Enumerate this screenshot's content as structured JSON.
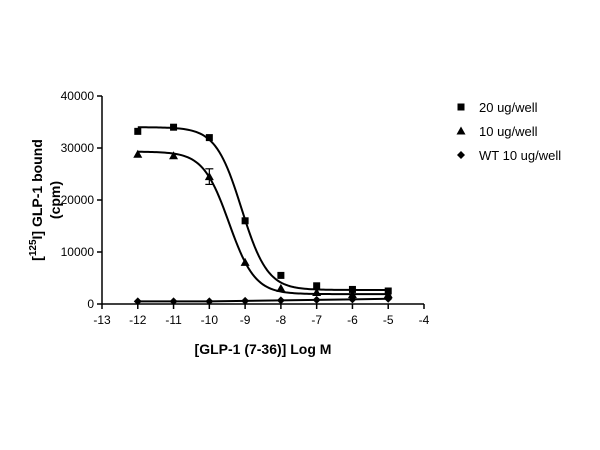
{
  "chart_data": {
    "type": "scatter",
    "xlabel": "[GLP-1 (7-36)] Log M",
    "ylabel_prefix": "[",
    "ylabel_sup": "125",
    "ylabel_main": "I] GLP-1 bound",
    "ylabel_unit": "(cpm)",
    "xlim": [
      -13,
      -4
    ],
    "ylim": [
      0,
      40000
    ],
    "x_ticks": [
      -13,
      -12,
      -11,
      -10,
      -9,
      -8,
      -7,
      -6,
      -5,
      -4
    ],
    "y_ticks": [
      0,
      10000,
      20000,
      30000,
      40000
    ],
    "x_tick_labels": [
      "-13",
      "-12",
      "-11",
      "-10",
      "-9",
      "-8",
      "-7",
      "-6",
      "-5",
      "-4"
    ],
    "y_tick_labels": [
      "0",
      "10000",
      "20000",
      "30000",
      "40000"
    ],
    "legend_position": "right",
    "series": [
      {
        "name": "20 ug/well",
        "marker": "square",
        "x": [
          -12,
          -11,
          -10,
          -9,
          -8,
          -7,
          -6,
          -5
        ],
        "y": [
          33200,
          34000,
          32000,
          16000,
          5500,
          3500,
          2800,
          2500
        ],
        "fit": {
          "top": 34000,
          "bottom": 2700,
          "logEC50": -9.1,
          "hill": 1.2
        }
      },
      {
        "name": "10 ug/well",
        "marker": "triangle",
        "x": [
          -12,
          -11,
          -10,
          -9,
          -8,
          -7,
          -6,
          -5
        ],
        "y": [
          28800,
          28500,
          24500,
          8000,
          3000,
          2200,
          1800,
          1800
        ],
        "error": [
          0,
          0,
          1500,
          0,
          0,
          0,
          0,
          0
        ],
        "fit": {
          "top": 29300,
          "bottom": 1900,
          "logEC50": -9.45,
          "hill": 1.2
        }
      },
      {
        "name": "WT 10 ug/well",
        "marker": "diamond",
        "x": [
          -12,
          -11,
          -10,
          -9,
          -8,
          -7,
          -6,
          -5
        ],
        "y": [
          500,
          500,
          500,
          600,
          700,
          800,
          900,
          1000
        ],
        "fit": null
      }
    ]
  }
}
